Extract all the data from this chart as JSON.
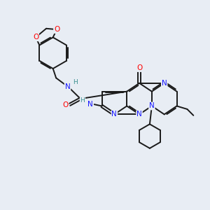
{
  "background_color": "#e8edf4",
  "bond_color": "#1a1a1a",
  "atom_colors": {
    "N": "#1414ff",
    "O": "#ff0000",
    "C": "#1a1a1a",
    "H": "#3a8f8f"
  },
  "line_width": 1.4,
  "figsize": [
    3.0,
    3.0
  ],
  "dpi": 100
}
